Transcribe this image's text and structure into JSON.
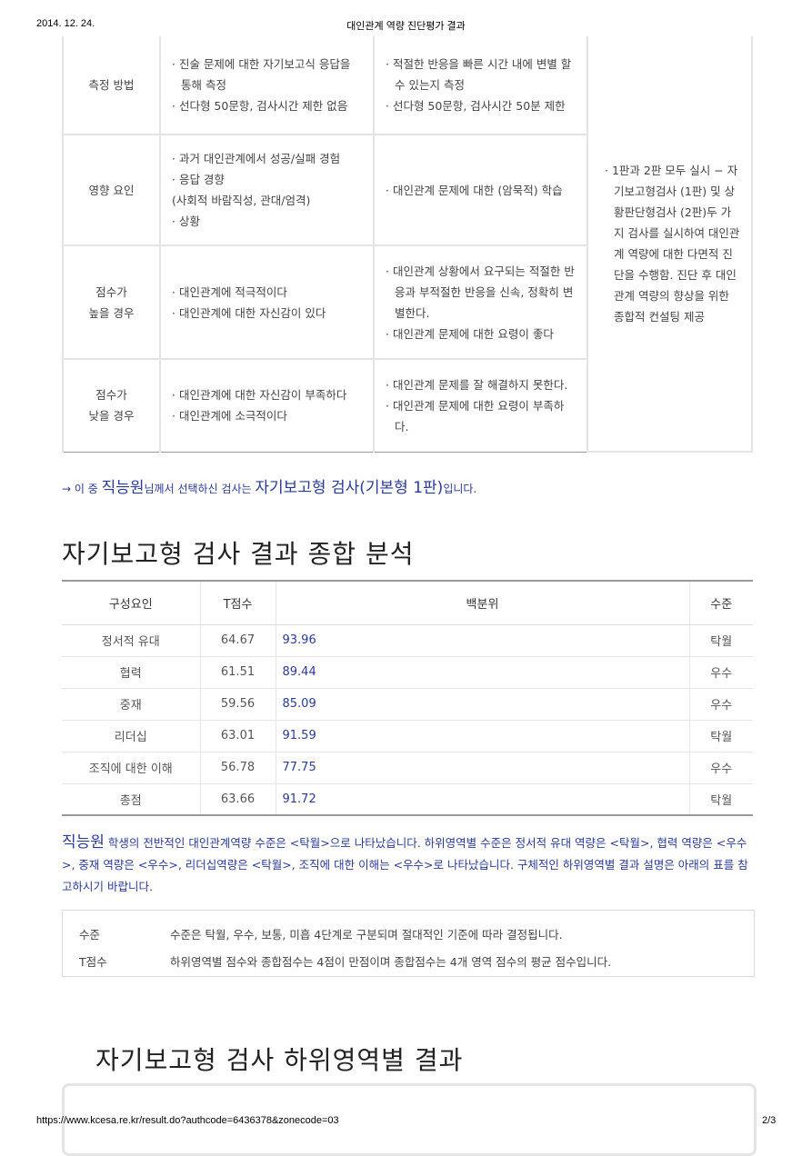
{
  "header": {
    "date": "2014. 12. 24.",
    "title": "대인관계 역량 진단평가 결과"
  },
  "footer": {
    "url": "https://www.kcesa.re.kr/result.do?authcode=6436378&zonecode=03",
    "page": "2/3"
  },
  "compare_table": {
    "rows": [
      {
        "label": [
          "측정 방법"
        ],
        "col1": [
          "· 진술 문제에 대한 자기보고식 응답을 통해 측정",
          "· 선다형 50문항, 검사시간 제한 없음"
        ],
        "col2": [
          "· 적절한 반응을 빠른 시간 내에 변별 할 수 있는지 측정",
          "· 선다형 50문항, 검사시간 50분 제한"
        ]
      },
      {
        "label": [
          "영향 요인"
        ],
        "col1": [
          "· 과거 대인관계에서 성공/실패 경험",
          "· 응답 경향",
          "(사회적 바람직성, 관대/엄격)",
          "· 상황"
        ],
        "col2": [
          "· 대인관계 문제에 대한 (암묵적) 학습"
        ]
      },
      {
        "label": [
          "점수가",
          "높을 경우"
        ],
        "col1": [
          "· 대인관계에 적극적이다",
          "· 대인관계에 대한 자신감이 있다"
        ],
        "col2": [
          "· 대인관계 상황에서 요구되는 적절한 반응과 부적절한 반응을 신속, 정확히 변별한다.",
          "· 대인관계 문제에 대한 요령이 좋다"
        ]
      },
      {
        "label": [
          "점수가",
          "낮을 경우"
        ],
        "col1": [
          "· 대인관계에 대한 자신감이 부족하다",
          "· 대인관계에 소극적이다"
        ],
        "col2": [
          "· 대인관계 문제를 잘 해결하지 못한다.",
          "· 대인관계 문제에 대한 요령이 부족하다."
        ]
      }
    ],
    "right": "· 1판과 2판 모두 실시 − 자기보고형검사 (1판) 및 상황판단형검사 (2판)두 가지 검사를 실시하여 대인관계 역량에 대한 다면적 진단을 수행함. 진단 후 대인관계 역량의 향상을 위한 종합적 컨설팅 제공"
  },
  "selection": {
    "prefix": "→ 이 중 ",
    "name": "직능원",
    "mid": "님께서 선택하신 검사는 ",
    "test": "자기보고형 검사(기본형 1판)",
    "suffix": "입니다."
  },
  "section1_title": "자기보고형 검사 결과 종합 분석",
  "results": {
    "headers": [
      "구성요인",
      "T점수",
      "백분위",
      "수준"
    ],
    "rows": [
      [
        "정서적 유대",
        "64.67",
        "93.96",
        "탁월"
      ],
      [
        "협력",
        "61.51",
        "89.44",
        "우수"
      ],
      [
        "중재",
        "59.56",
        "85.09",
        "우수"
      ],
      [
        "리더십",
        "63.01",
        "91.59",
        "탁월"
      ],
      [
        "조직에 대한 이해",
        "56.78",
        "77.75",
        "우수"
      ],
      [
        "총점",
        "63.66",
        "91.72",
        "탁월"
      ]
    ]
  },
  "summary": {
    "name": "직능원",
    "text": " 학생의 전반적인 대인관계역량 수준은 <탁월>으로 나타났습니다. 하위영역별 수준은 정서적 유대 역량은 <탁월>, 협력 역량은 <우수>, 중재 역량은 <우수>, 리더십역량은 <탁월>, 조직에 대한 이해는 <우수>로 나타났습니다. 구체적인 하위영역별 결과 설명은 아래의 표를 참고하시기 바랍니다."
  },
  "notes": [
    {
      "key": "수준",
      "value": "수준은 탁월, 우수, 보통, 미흡 4단계로 구분되며 절대적인 기준에 따라 결정됩니다."
    },
    {
      "key": "T점수",
      "value": "하위영역별 점수와 종합점수는 4점이 만점이며 종합점수는 4개 영역 점수의 평균 점수입니다."
    }
  ],
  "section2_title": "자기보고형 검사 하위영역별 결과"
}
